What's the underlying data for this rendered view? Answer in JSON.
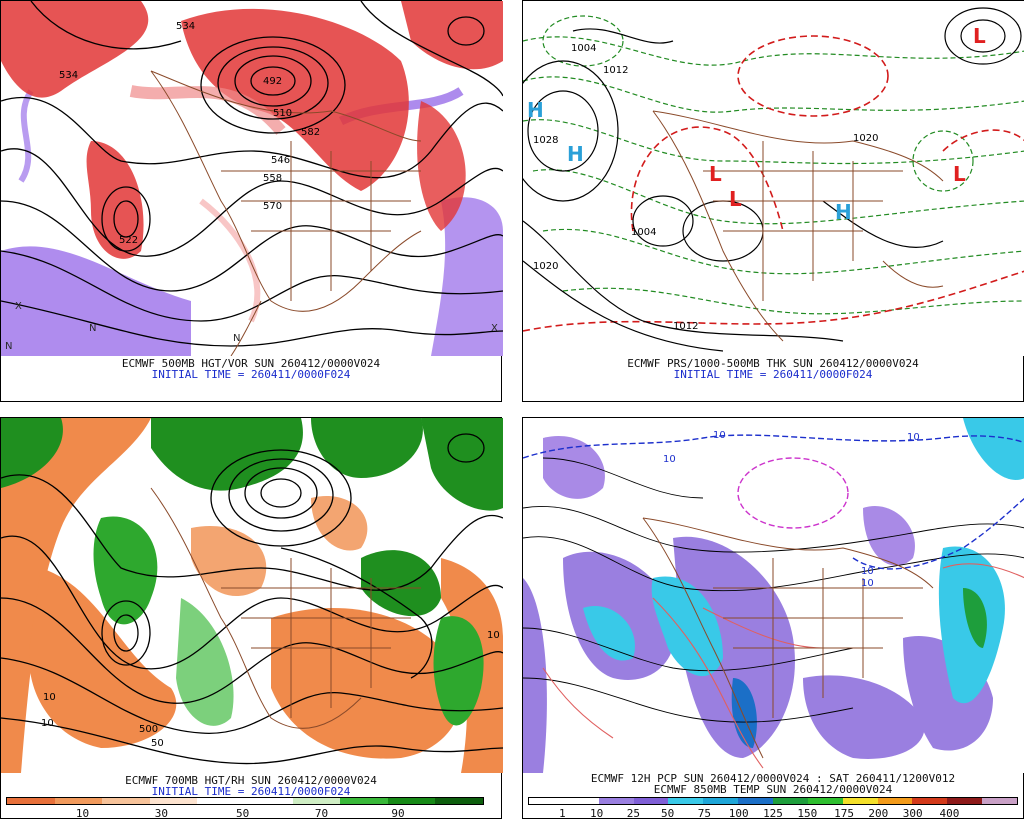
{
  "panels": [
    {
      "id": "p1",
      "caption": "ECMWF 500MB HGT/VOR SUN 260412/0000V024",
      "initial_time": "INITIAL TIME = 260411/0000F024",
      "contour_labels": [
        "534",
        "492",
        "510",
        "546",
        "558",
        "570",
        "582",
        "522",
        "534"
      ],
      "markers": [
        "X",
        "N",
        "N",
        "N",
        "X"
      ]
    },
    {
      "id": "p2",
      "caption": "ECMWF PRS/1000-500MB THK SUN 260412/0000V024",
      "initial_time": "INITIAL TIME = 260411/0000F024",
      "highs": [
        "H",
        "H",
        "H"
      ],
      "lows": [
        "L",
        "L",
        "L",
        "L"
      ],
      "contour_labels": [
        "1028",
        "1020",
        "1004",
        "1012",
        "1004",
        "1020",
        "1012"
      ]
    },
    {
      "id": "p3",
      "caption": "ECMWF 700MB HGT/RH SUN 260412/0000V024",
      "initial_time": "INITIAL TIME = 260411/0000F024",
      "colorbar_labels": [
        "10",
        "30",
        "50",
        "70",
        "90"
      ],
      "colorbar_colors": [
        "#e8703a",
        "#f19a5c",
        "#f7c39a",
        "#fde3cf",
        "#ffffff",
        "#ffffff",
        "#cfeec4",
        "#38b838",
        "#178a17",
        "#0d5e0d"
      ],
      "contour_labels": [
        "10",
        "50",
        "10",
        "500",
        "10"
      ]
    },
    {
      "id": "p4",
      "caption": "ECMWF 12H PCP SUN 260412/0000V024 : SAT 260411/1200V012",
      "caption2": "ECMWF 850MB TEMP SUN 260412/0000V024",
      "colorbar_labels": [
        "1",
        "10",
        "25",
        "50",
        "75",
        "100",
        "125",
        "150",
        "175",
        "200",
        "300",
        "400"
      ],
      "colorbar_colors": [
        "#ffffff",
        "#ffffff",
        "#9a7fe0",
        "#7f5fd6",
        "#39c9e8",
        "#1ea6d8",
        "#1b6fc7",
        "#1e9e3c",
        "#2fbf2f",
        "#f4e02a",
        "#f39b1a",
        "#d33a1a",
        "#8e1a1a",
        "#c9a0c6"
      ],
      "contour_labels": [
        "10",
        "10",
        "10",
        "10",
        "10"
      ]
    }
  ]
}
